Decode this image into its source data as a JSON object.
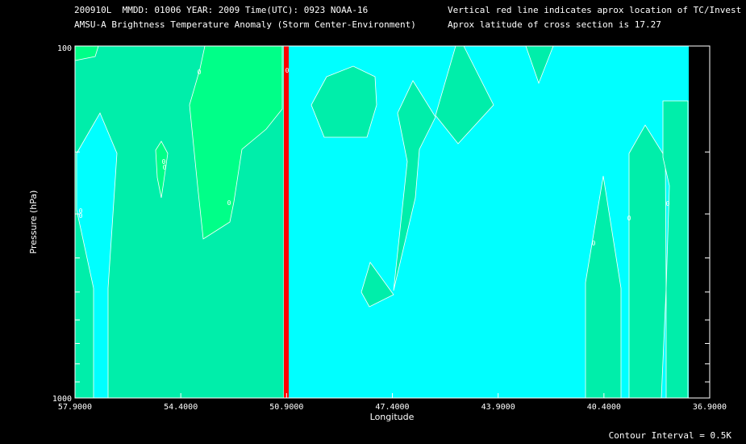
{
  "header": {
    "line1": "200910L  MMDD: 01006 YEAR: 2009 Time(UTC): 0923 NOAA-16",
    "line2": "AMSU-A Brightness Temperature Anomaly (Storm Center-Environment)",
    "line3": "Vertical red line indicates aprox location of TC/Invest",
    "line4": "Aprox latitude of cross section is 17.27"
  },
  "footer": "Contour Interval = 0.5K",
  "colors": {
    "background": "#000000",
    "fill_zero": "#00ffff",
    "fill_half": "#00eeaa",
    "fill_one": "#00ff88",
    "tc_line": "#ff0000",
    "contour": "#ffffff"
  },
  "chart_data": {
    "type": "contour",
    "xlabel": "Longitude",
    "ylabel": "Pressure (hPa)",
    "x_ticks": [
      "57.9000",
      "54.4000",
      "50.9000",
      "47.4000",
      "43.9000",
      "40.4000",
      "36.9000"
    ],
    "x_tick_values": [
      57.9,
      54.4,
      50.9,
      47.4,
      43.9,
      40.4,
      36.9
    ],
    "y_ticks": [
      "100",
      "1000"
    ],
    "y_tick_values": [
      100,
      1000
    ],
    "xlim": [
      57.9,
      36.9
    ],
    "ylim": [
      1000,
      100
    ],
    "y_scale": "log",
    "tc_longitude": 50.9,
    "contour_interval": 0.5,
    "contour_labels": [
      "0",
      "0",
      "0",
      "0",
      "0",
      "0",
      "0",
      "0",
      "0",
      "0"
    ]
  }
}
